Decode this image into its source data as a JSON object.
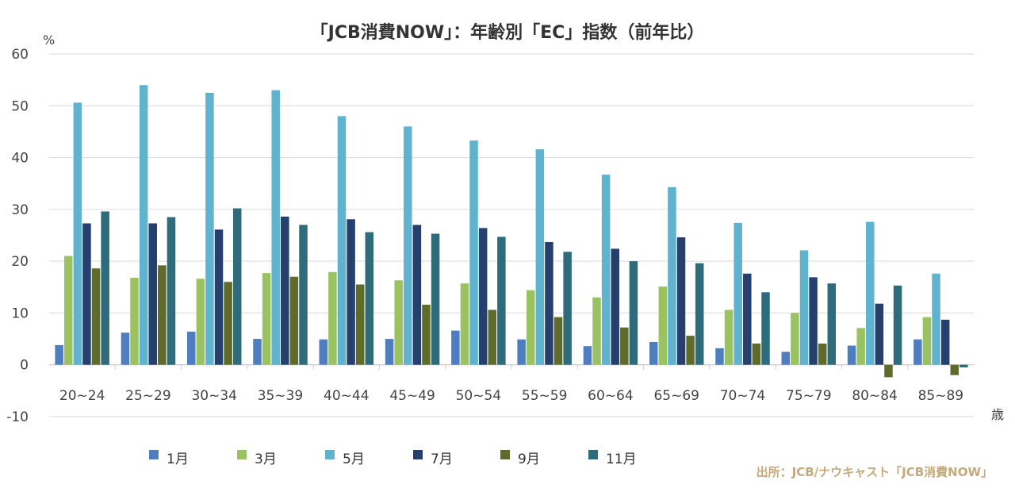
{
  "chart_data": {
    "type": "bar",
    "title": "「JCB消費NOW」：年齢別「EC」指数（前年比）",
    "ylabel": "%",
    "xlabel": "歳",
    "ylim": [
      -10,
      60
    ],
    "yticks": [
      -10,
      0,
      10,
      20,
      30,
      40,
      50,
      60
    ],
    "grid": true,
    "legend_position": "bottom",
    "categories": [
      "20~24",
      "25~29",
      "30~34",
      "35~39",
      "40~44",
      "45~49",
      "50~54",
      "55~59",
      "60~64",
      "65~69",
      "70~74",
      "75~79",
      "80~84",
      "85~89"
    ],
    "series": [
      {
        "name": "1月",
        "color": "#4f7ec0",
        "values": [
          3.8,
          6.2,
          6.4,
          5.0,
          4.9,
          5.0,
          6.6,
          4.9,
          3.6,
          4.4,
          3.2,
          2.5,
          3.7,
          4.9
        ]
      },
      {
        "name": "3月",
        "color": "#9bc261",
        "values": [
          21.0,
          16.8,
          16.6,
          17.7,
          17.9,
          16.3,
          15.7,
          14.4,
          13.0,
          15.1,
          10.6,
          10.0,
          7.1,
          9.2
        ]
      },
      {
        "name": "5月",
        "color": "#5fb3cf",
        "values": [
          50.6,
          54.0,
          52.5,
          53.0,
          48.0,
          46.0,
          43.3,
          41.6,
          36.7,
          34.3,
          27.4,
          22.1,
          27.6,
          17.6
        ]
      },
      {
        "name": "7月",
        "color": "#26406e",
        "values": [
          27.3,
          27.3,
          26.1,
          28.6,
          28.1,
          27.0,
          26.4,
          23.7,
          22.4,
          24.6,
          17.6,
          16.9,
          11.8,
          8.7
        ]
      },
      {
        "name": "9月",
        "color": "#5e6b2b",
        "values": [
          18.6,
          19.2,
          16.0,
          17.0,
          15.5,
          11.6,
          10.6,
          9.2,
          7.2,
          5.6,
          4.1,
          4.1,
          -2.4,
          -2.0
        ]
      },
      {
        "name": "11月",
        "color": "#2e6b7b",
        "values": [
          29.6,
          28.5,
          30.2,
          27.0,
          25.6,
          25.3,
          24.7,
          21.8,
          20.0,
          19.6,
          14.0,
          15.7,
          15.3,
          -0.5
        ]
      }
    ],
    "source": "出所：JCB/ナウキャスト「JCB消費NOW」"
  }
}
